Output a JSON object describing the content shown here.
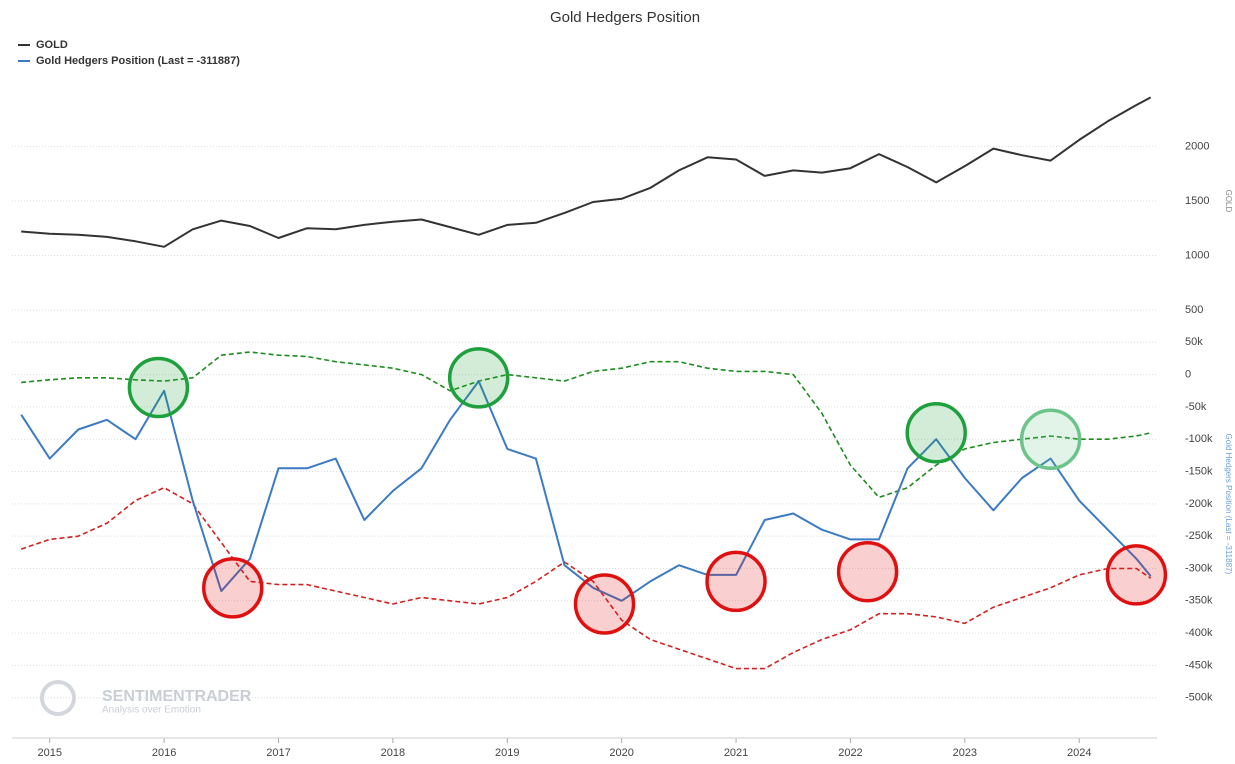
{
  "chart_data": {
    "type": "line",
    "title": "Gold Hedgers Position",
    "ylabel": "GOLD",
    "y2label": "Gold Hedgers Position (Last = -311887)",
    "xlim": [
      2014.67,
      2024.68
    ],
    "xticks": [
      2015,
      2016,
      2017,
      2018,
      2019,
      2020,
      2021,
      2022,
      2023,
      2024
    ],
    "ylim": [
      500,
      2600
    ],
    "yticks": [
      500,
      1000,
      1500,
      2000
    ],
    "y2lim": [
      -550000,
      100000
    ],
    "y2ticks": [
      {
        "value": 50000,
        "label": "50k"
      },
      0,
      {
        "value": -50000,
        "label": "-50k"
      },
      {
        "value": -100000,
        "label": "-100k"
      },
      {
        "value": -150000,
        "label": "-150k"
      },
      {
        "value": -200000,
        "label": "-200k"
      },
      {
        "value": -250000,
        "label": "-250k"
      },
      {
        "value": -300000,
        "label": "-300k"
      },
      {
        "value": -350000,
        "label": "-350k"
      },
      {
        "value": -400000,
        "label": "-400k"
      },
      {
        "value": -450000,
        "label": "-450k"
      },
      {
        "value": -500000,
        "label": "-500k"
      }
    ],
    "grid": true,
    "legend": "top-left",
    "x": [
      2014.75,
      2015,
      2015.25,
      2015.5,
      2015.75,
      2016,
      2016.25,
      2016.5,
      2016.75,
      2017,
      2017.25,
      2017.5,
      2017.75,
      2018,
      2018.25,
      2018.5,
      2018.75,
      2019,
      2019.25,
      2019.5,
      2019.75,
      2020,
      2020.25,
      2020.5,
      2020.75,
      2021,
      2021.25,
      2021.5,
      2021.75,
      2022,
      2022.25,
      2022.5,
      2022.75,
      2023,
      2023.25,
      2023.5,
      2023.75,
      2024,
      2024.25,
      2024.5,
      2024.625
    ],
    "series": [
      {
        "name": "GOLD",
        "color": "#333333",
        "axis": "y",
        "values": [
          1220,
          1200,
          1190,
          1170,
          1130,
          1080,
          1240,
          1320,
          1270,
          1160,
          1250,
          1240,
          1280,
          1310,
          1330,
          1260,
          1190,
          1280,
          1300,
          1390,
          1490,
          1520,
          1620,
          1780,
          1900,
          1880,
          1730,
          1780,
          1760,
          1800,
          1930,
          1810,
          1670,
          1820,
          1980,
          1920,
          1870,
          2060,
          2230,
          2380,
          2450
        ]
      },
      {
        "name": "Gold Hedgers Position (Last = -311887)",
        "color": "#3b7bc4",
        "axis": "y2",
        "values": [
          -62000,
          -130000,
          -85000,
          -70000,
          -100000,
          -25000,
          -195000,
          -335000,
          -285000,
          -145000,
          -145000,
          -130000,
          -225000,
          -180000,
          -145000,
          -70000,
          -10000,
          -115000,
          -130000,
          -295000,
          -330000,
          -350000,
          -320000,
          -295000,
          -310000,
          -310000,
          -225000,
          -215000,
          -240000,
          -255000,
          -255000,
          -145000,
          -100000,
          -160000,
          -210000,
          -160000,
          -130000,
          -195000,
          -240000,
          -285000,
          -311887
        ]
      }
    ],
    "upper_band": {
      "color": "#1e8c1e",
      "axis": "y2",
      "values": [
        -12000,
        -8000,
        -5000,
        -5000,
        -8000,
        -10000,
        -5000,
        30000,
        35000,
        30000,
        28000,
        20000,
        15000,
        10000,
        0,
        -25000,
        -10000,
        0,
        -5000,
        -10000,
        5000,
        10000,
        20000,
        20000,
        10000,
        5000,
        5000,
        0,
        -60000,
        -140000,
        -190000,
        -175000,
        -140000,
        -115000,
        -105000,
        -100000,
        -95000,
        -100000,
        -100000,
        -95000,
        -90000
      ]
    },
    "lower_band": {
      "color": "#d42020",
      "axis": "y2",
      "values": [
        -270000,
        -255000,
        -250000,
        -230000,
        -195000,
        -175000,
        -200000,
        -260000,
        -320000,
        -325000,
        -325000,
        -335000,
        -345000,
        -355000,
        -345000,
        -350000,
        -355000,
        -345000,
        -320000,
        -290000,
        -320000,
        -380000,
        -410000,
        -425000,
        -440000,
        -455000,
        -455000,
        -430000,
        -410000,
        -395000,
        -370000,
        -370000,
        -375000,
        -385000,
        -360000,
        -345000,
        -330000,
        -310000,
        -300000,
        -300000,
        -315000
      ]
    },
    "highlights": [
      {
        "x": 2015.95,
        "y": -20000,
        "color": "#1ea03c"
      },
      {
        "x": 2018.75,
        "y": -5000,
        "color": "#1ea03c"
      },
      {
        "x": 2022.75,
        "y": -90000,
        "color": "#1ea03c"
      },
      {
        "x": 2023.75,
        "y": -100000,
        "color": "#6cc48a"
      },
      {
        "x": 2016.6,
        "y": -330000,
        "color": "#e01010"
      },
      {
        "x": 2019.85,
        "y": -355000,
        "color": "#e01010"
      },
      {
        "x": 2021.0,
        "y": -320000,
        "color": "#e01010"
      },
      {
        "x": 2022.15,
        "y": -305000,
        "color": "#e01010"
      },
      {
        "x": 2024.5,
        "y": -310000,
        "color": "#e01010"
      }
    ],
    "watermark": {
      "name": "SENTIMENTRADER",
      "tagline": "Analysis over Emotion"
    }
  }
}
